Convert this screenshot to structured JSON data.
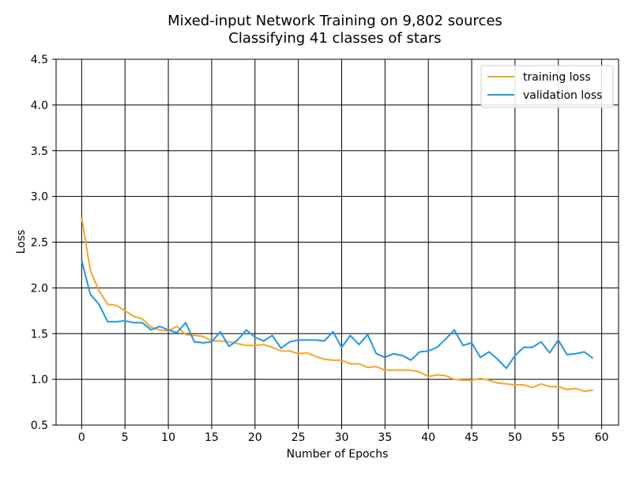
{
  "chart_data": {
    "type": "line",
    "title_line1": "Mixed-input Network Training on 9,802 sources",
    "title_line2": "Classifying 41 classes of stars",
    "xlabel": "Number of Epochs",
    "ylabel": "Loss",
    "xlim": [
      -2.95,
      61.95
    ],
    "ylim": [
      0.5,
      4.5
    ],
    "xticks": [
      0,
      5,
      10,
      15,
      20,
      25,
      30,
      35,
      40,
      45,
      50,
      55,
      60
    ],
    "yticks": [
      0.5,
      1.0,
      1.5,
      2.0,
      2.5,
      3.0,
      3.5,
      4.0,
      4.5
    ],
    "ytick_labels": [
      "0.5",
      "1.0",
      "1.5",
      "2.0",
      "2.5",
      "3.0",
      "3.5",
      "4.0",
      "4.5"
    ],
    "grid": true,
    "legend_position": "top-right",
    "x": [
      0,
      1,
      2,
      3,
      4,
      5,
      6,
      7,
      8,
      9,
      10,
      11,
      12,
      13,
      14,
      15,
      16,
      17,
      18,
      19,
      20,
      21,
      22,
      23,
      24,
      25,
      26,
      27,
      28,
      29,
      30,
      31,
      32,
      33,
      34,
      35,
      36,
      37,
      38,
      39,
      40,
      41,
      42,
      43,
      44,
      45,
      46,
      47,
      48,
      49,
      50,
      51,
      52,
      53,
      54,
      55,
      56,
      57,
      58,
      59
    ],
    "series": [
      {
        "name": "training loss",
        "color": "#f5a623",
        "values": [
          2.77,
          2.19,
          1.97,
          1.82,
          1.81,
          1.75,
          1.69,
          1.66,
          1.57,
          1.54,
          1.53,
          1.58,
          1.49,
          1.48,
          1.47,
          1.42,
          1.42,
          1.41,
          1.39,
          1.37,
          1.37,
          1.38,
          1.35,
          1.31,
          1.31,
          1.28,
          1.29,
          1.25,
          1.22,
          1.21,
          1.21,
          1.17,
          1.17,
          1.13,
          1.14,
          1.1,
          1.1,
          1.1,
          1.1,
          1.08,
          1.03,
          1.05,
          1.04,
          1.0,
          0.99,
          0.99,
          1.01,
          0.99,
          0.96,
          0.95,
          0.94,
          0.94,
          0.91,
          0.95,
          0.92,
          0.92,
          0.89,
          0.9,
          0.87,
          0.88
        ]
      },
      {
        "name": "validation loss",
        "color": "#1f97e8",
        "values": [
          2.3,
          1.93,
          1.82,
          1.63,
          1.63,
          1.64,
          1.62,
          1.62,
          1.54,
          1.58,
          1.54,
          1.51,
          1.62,
          1.41,
          1.4,
          1.41,
          1.52,
          1.36,
          1.43,
          1.54,
          1.46,
          1.42,
          1.48,
          1.34,
          1.41,
          1.43,
          1.43,
          1.43,
          1.42,
          1.52,
          1.35,
          1.48,
          1.38,
          1.49,
          1.28,
          1.24,
          1.28,
          1.26,
          1.21,
          1.3,
          1.31,
          1.35,
          1.44,
          1.54,
          1.37,
          1.4,
          1.24,
          1.3,
          1.22,
          1.12,
          1.26,
          1.35,
          1.35,
          1.41,
          1.29,
          1.43,
          1.27,
          1.28,
          1.3,
          1.23
        ]
      }
    ]
  }
}
